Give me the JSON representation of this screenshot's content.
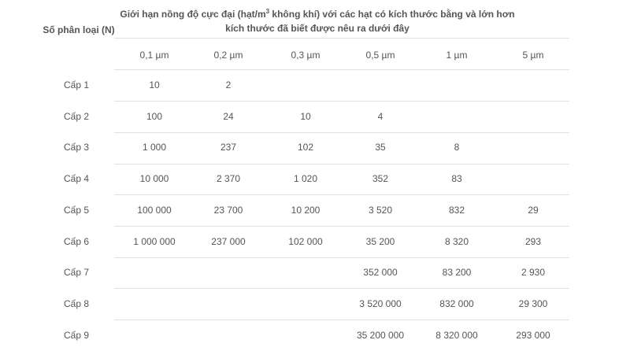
{
  "table": {
    "header_class": "Số phân loại (N)",
    "header_limit_before": "Giới hạn nồng độ cực đại (hạt/m",
    "header_limit_sup": "3",
    "header_limit_after": " không khí) với các hạt có kích thước bằng và lớn hơn kích thước đã biết được nêu ra dưới đây",
    "sizes": [
      "0,1 µm",
      "0,2 µm",
      "0,3 µm",
      "0,5 µm",
      "1 µm",
      "5 µm"
    ],
    "rows": [
      {
        "label": "Cấp 1",
        "values": [
          "10",
          "2",
          "",
          "",
          "",
          ""
        ]
      },
      {
        "label": "Cấp 2",
        "values": [
          "100",
          "24",
          "10",
          "4",
          "",
          ""
        ]
      },
      {
        "label": "Cấp 3",
        "values": [
          "1 000",
          "237",
          "102",
          "35",
          "8",
          ""
        ]
      },
      {
        "label": "Cấp 4",
        "values": [
          "10 000",
          "2 370",
          "1 020",
          "352",
          "83",
          ""
        ]
      },
      {
        "label": "Cấp 5",
        "values": [
          "100 000",
          "23 700",
          "10 200",
          "3 520",
          "832",
          "29"
        ]
      },
      {
        "label": "Cấp 6",
        "values": [
          "1 000 000",
          "237 000",
          "102 000",
          "35 200",
          "8 320",
          "293"
        ]
      },
      {
        "label": "Cấp 7",
        "values": [
          "",
          "",
          "",
          "352 000",
          "83 200",
          "2 930"
        ]
      },
      {
        "label": "Cấp 8",
        "values": [
          "",
          "",
          "",
          "3 520 000",
          "832 000",
          "29 300"
        ]
      },
      {
        "label": "Cấp 9",
        "values": [
          "",
          "",
          "",
          "35 200 000",
          "8 320 000",
          "293 000"
        ]
      }
    ]
  }
}
